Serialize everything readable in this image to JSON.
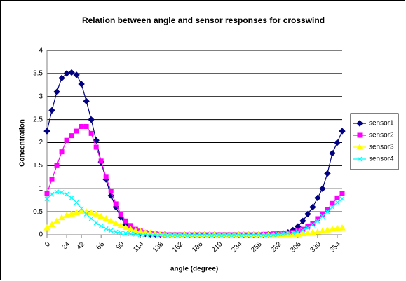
{
  "chart_data": {
    "type": "line",
    "title": "Relation between angle and sensor responses for crosswind",
    "x_label": "angle (degree)",
    "y_label": "Concentration",
    "categories": [
      "0",
      null,
      null,
      null,
      "24",
      null,
      null,
      "42",
      null,
      null,
      null,
      "66",
      null,
      null,
      null,
      "90",
      null,
      null,
      null,
      "114",
      null,
      null,
      null,
      "138",
      null,
      null,
      null,
      "162",
      null,
      null,
      null,
      "186",
      null,
      null,
      null,
      "210",
      null,
      null,
      null,
      "234",
      null,
      null,
      null,
      "258",
      null,
      null,
      null,
      "282",
      null,
      null,
      null,
      "306",
      null,
      null,
      null,
      "330",
      null,
      null,
      null,
      "354",
      null
    ],
    "series": [
      {
        "name": "sensor1",
        "color": "#000080",
        "marker": "diamond",
        "values": [
          2.25,
          2.7,
          3.1,
          3.4,
          3.5,
          3.52,
          3.47,
          3.27,
          2.9,
          2.5,
          2.05,
          1.58,
          1.2,
          0.85,
          0.6,
          0.38,
          0.22,
          0.13,
          0.07,
          0.04,
          0.02,
          0.01,
          0.01,
          0.01,
          0.01,
          0,
          0,
          0,
          0,
          0,
          0,
          0,
          0,
          0,
          0,
          0,
          0,
          0,
          0,
          0,
          0,
          0,
          0,
          0,
          0,
          0.01,
          0.01,
          0.02,
          0.03,
          0.05,
          0.1,
          0.18,
          0.3,
          0.45,
          0.6,
          0.8,
          1.0,
          1.33,
          1.77,
          2.0,
          2.25
        ]
      },
      {
        "name": "sensor2",
        "color": "#FF00FF",
        "marker": "square",
        "values": [
          0.9,
          1.2,
          1.5,
          1.8,
          2.05,
          2.15,
          2.25,
          2.35,
          2.35,
          2.2,
          1.9,
          1.6,
          1.25,
          0.95,
          0.67,
          0.45,
          0.3,
          0.2,
          0.12,
          0.08,
          0.05,
          0.03,
          0.02,
          0.01,
          0,
          0,
          0,
          0,
          0,
          0,
          0,
          0,
          0,
          0,
          0,
          0,
          0,
          0,
          0,
          0,
          0,
          0,
          0,
          0,
          0.01,
          0.01,
          0.02,
          0.02,
          0.03,
          0.04,
          0.05,
          0.08,
          0.12,
          0.18,
          0.25,
          0.35,
          0.45,
          0.55,
          0.68,
          0.8,
          0.9
        ]
      },
      {
        "name": "sensor3",
        "color": "#FFFF00",
        "marker": "triangle",
        "values": [
          0.15,
          0.22,
          0.3,
          0.37,
          0.42,
          0.45,
          0.48,
          0.5,
          0.5,
          0.48,
          0.45,
          0.4,
          0.35,
          0.3,
          0.25,
          0.2,
          0.16,
          0.12,
          0.09,
          0.07,
          0.05,
          0.04,
          0.03,
          0.02,
          0.01,
          0,
          0,
          0,
          0,
          0,
          0,
          0,
          0,
          0,
          0,
          0,
          0,
          0,
          0,
          0,
          0,
          0,
          0,
          0,
          0,
          0,
          0,
          0,
          0,
          0,
          0.01,
          0.01,
          0.02,
          0.03,
          0.05,
          0.06,
          0.08,
          0.1,
          0.12,
          0.14,
          0.15
        ]
      },
      {
        "name": "sensor4",
        "color": "#00FFFF",
        "marker": "x",
        "values": [
          0.78,
          0.88,
          0.93,
          0.92,
          0.88,
          0.8,
          0.7,
          0.57,
          0.45,
          0.35,
          0.26,
          0.19,
          0.13,
          0.09,
          0.06,
          0.04,
          0.03,
          0.02,
          0.01,
          0,
          0,
          0,
          0,
          0,
          0,
          0,
          0,
          0,
          0,
          0,
          0,
          0,
          0,
          0,
          0,
          0,
          0,
          0,
          0,
          0,
          0,
          0,
          0,
          0,
          0,
          0,
          0,
          0.01,
          0.02,
          0.03,
          0.04,
          0.07,
          0.1,
          0.15,
          0.22,
          0.3,
          0.4,
          0.5,
          0.6,
          0.7,
          0.78
        ]
      }
    ],
    "ylim": [
      0,
      4
    ],
    "yticks": [
      0,
      0.5,
      1,
      1.5,
      2,
      2.5,
      3,
      3.5,
      4
    ],
    "grid": true,
    "legend": "right"
  }
}
